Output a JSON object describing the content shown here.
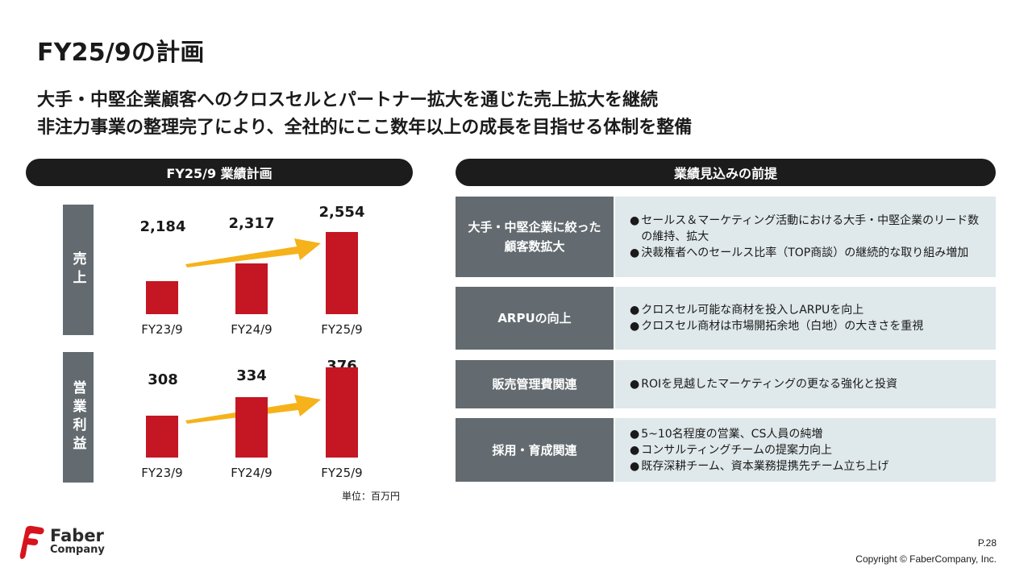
{
  "title": "FY25/9の計画",
  "subtitle": {
    "line1": "大手・中堅企業顧客へのクロスセルとパートナー拡大を通じた売上拡大を継続",
    "line2": "非注力事業の整理完了により、全社的にここ数年以上の成長を目指せる体制を整備"
  },
  "left_header": "FY25/9 業績計画",
  "right_header": "業績見込みの前提",
  "unit_label": "単位：百万円",
  "chart_data": [
    {
      "type": "bar",
      "side_label": "売上",
      "categories": [
        "FY23/9",
        "FY24/9",
        "FY25/9"
      ],
      "values": [
        2184,
        2317,
        2554
      ],
      "value_labels": [
        "2,184",
        "2,317",
        "2,554"
      ],
      "bar_color": "#c41623",
      "trend_arrow_color": "#f5b21b"
    },
    {
      "type": "bar",
      "side_label": "営業利益",
      "categories": [
        "FY23/9",
        "FY24/9",
        "FY25/9"
      ],
      "values": [
        308,
        334,
        376
      ],
      "value_labels": [
        "308",
        "334",
        "376"
      ],
      "bar_color": "#c41623",
      "trend_arrow_color": "#f5b21b"
    }
  ],
  "premises": [
    {
      "head_lines": [
        "大手・中堅企業に絞った",
        "顧客数拡大"
      ],
      "bullets": [
        "セールス＆マーケティング活動における大手・中堅企業のリード数の維持、拡大",
        "決裁権者へのセールス比率（TOP商談）の継続的な取り組み増加"
      ]
    },
    {
      "head_lines": [
        "ARPUの向上"
      ],
      "bullets": [
        "クロスセル可能な商材を投入しARPUを向上",
        "クロスセル商材は市場開拓余地（白地）の大きさを重視"
      ]
    },
    {
      "head_lines": [
        "販売管理費関連"
      ],
      "bullets": [
        "ROIを見越したマーケティングの更なる強化と投資"
      ]
    },
    {
      "head_lines": [
        "採用・育成関連"
      ],
      "bullets": [
        "5~10名程度の営業、CS人員の純増",
        "コンサルティングチームの提案力向上",
        "既存深耕チーム、資本業務提携先チーム立ち上げ"
      ]
    }
  ],
  "bullet_mark": "●",
  "logo": {
    "line1": "Faber",
    "line2": "Company",
    "mark_color": "#d7141e"
  },
  "page_number": "P.28",
  "copyright": "Copyright © FaberCompany, Inc."
}
